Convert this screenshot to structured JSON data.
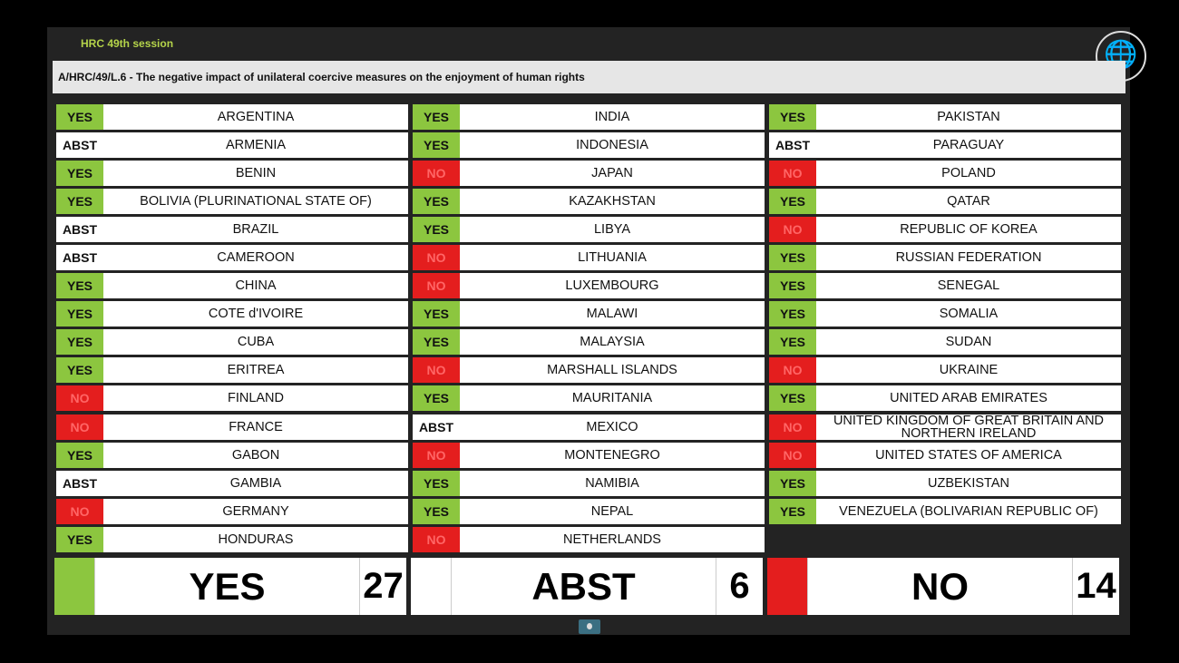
{
  "header": {
    "session": "HRC 49th session",
    "title": "A/HRC/49/L.6 - The negative impact of unilateral coercive measures on the enjoyment of human rights",
    "logo": "UN"
  },
  "colors": {
    "yes": "#8cc63f",
    "no": "#e41e1e",
    "abst": "#ffffff"
  },
  "columns": [
    [
      {
        "vote": "YES",
        "country": "ARGENTINA"
      },
      {
        "vote": "ABST",
        "country": "ARMENIA"
      },
      {
        "vote": "YES",
        "country": "BENIN"
      },
      {
        "vote": "YES",
        "country": "BOLIVIA (PLURINATIONAL STATE OF)"
      },
      {
        "vote": "ABST",
        "country": "BRAZIL"
      },
      {
        "vote": "ABST",
        "country": "CAMEROON"
      },
      {
        "vote": "YES",
        "country": "CHINA"
      },
      {
        "vote": "YES",
        "country": "COTE d'IVOIRE"
      },
      {
        "vote": "YES",
        "country": "CUBA"
      },
      {
        "vote": "YES",
        "country": "ERITREA"
      },
      {
        "vote": "NO",
        "country": "FINLAND"
      },
      {
        "vote": "NO",
        "country": "FRANCE"
      },
      {
        "vote": "YES",
        "country": "GABON"
      },
      {
        "vote": "ABST",
        "country": "GAMBIA"
      },
      {
        "vote": "NO",
        "country": "GERMANY"
      },
      {
        "vote": "YES",
        "country": "HONDURAS"
      }
    ],
    [
      {
        "vote": "YES",
        "country": "INDIA"
      },
      {
        "vote": "YES",
        "country": "INDONESIA"
      },
      {
        "vote": "NO",
        "country": "JAPAN"
      },
      {
        "vote": "YES",
        "country": "KAZAKHSTAN"
      },
      {
        "vote": "YES",
        "country": "LIBYA"
      },
      {
        "vote": "NO",
        "country": "LITHUANIA"
      },
      {
        "vote": "NO",
        "country": "LUXEMBOURG"
      },
      {
        "vote": "YES",
        "country": "MALAWI"
      },
      {
        "vote": "YES",
        "country": "MALAYSIA"
      },
      {
        "vote": "NO",
        "country": "MARSHALL ISLANDS"
      },
      {
        "vote": "YES",
        "country": "MAURITANIA"
      },
      {
        "vote": "ABST",
        "country": "MEXICO"
      },
      {
        "vote": "NO",
        "country": "MONTENEGRO"
      },
      {
        "vote": "YES",
        "country": "NAMIBIA"
      },
      {
        "vote": "YES",
        "country": "NEPAL"
      },
      {
        "vote": "NO",
        "country": "NETHERLANDS"
      }
    ],
    [
      {
        "vote": "YES",
        "country": "PAKISTAN"
      },
      {
        "vote": "ABST",
        "country": "PARAGUAY"
      },
      {
        "vote": "NO",
        "country": "POLAND"
      },
      {
        "vote": "YES",
        "country": "QATAR"
      },
      {
        "vote": "NO",
        "country": "REPUBLIC OF KOREA"
      },
      {
        "vote": "YES",
        "country": "RUSSIAN FEDERATION"
      },
      {
        "vote": "YES",
        "country": "SENEGAL"
      },
      {
        "vote": "YES",
        "country": "SOMALIA"
      },
      {
        "vote": "YES",
        "country": "SUDAN"
      },
      {
        "vote": "NO",
        "country": "UKRAINE"
      },
      {
        "vote": "YES",
        "country": "UNITED ARAB EMIRATES"
      },
      {
        "vote": "NO",
        "country": "UNITED KINGDOM OF GREAT BRITAIN AND NORTHERN IRELAND"
      },
      {
        "vote": "NO",
        "country": "UNITED STATES OF AMERICA"
      },
      {
        "vote": "YES",
        "country": "UZBEKISTAN"
      },
      {
        "vote": "YES",
        "country": "VENEZUELA (BOLIVARIAN REPUBLIC OF)"
      }
    ]
  ],
  "totals": [
    {
      "label": "YES",
      "count": "27",
      "color": "#8cc63f"
    },
    {
      "label": "ABST",
      "count": "6",
      "color": "#ffffff"
    },
    {
      "label": "NO",
      "count": "14",
      "color": "#e41e1e"
    }
  ]
}
